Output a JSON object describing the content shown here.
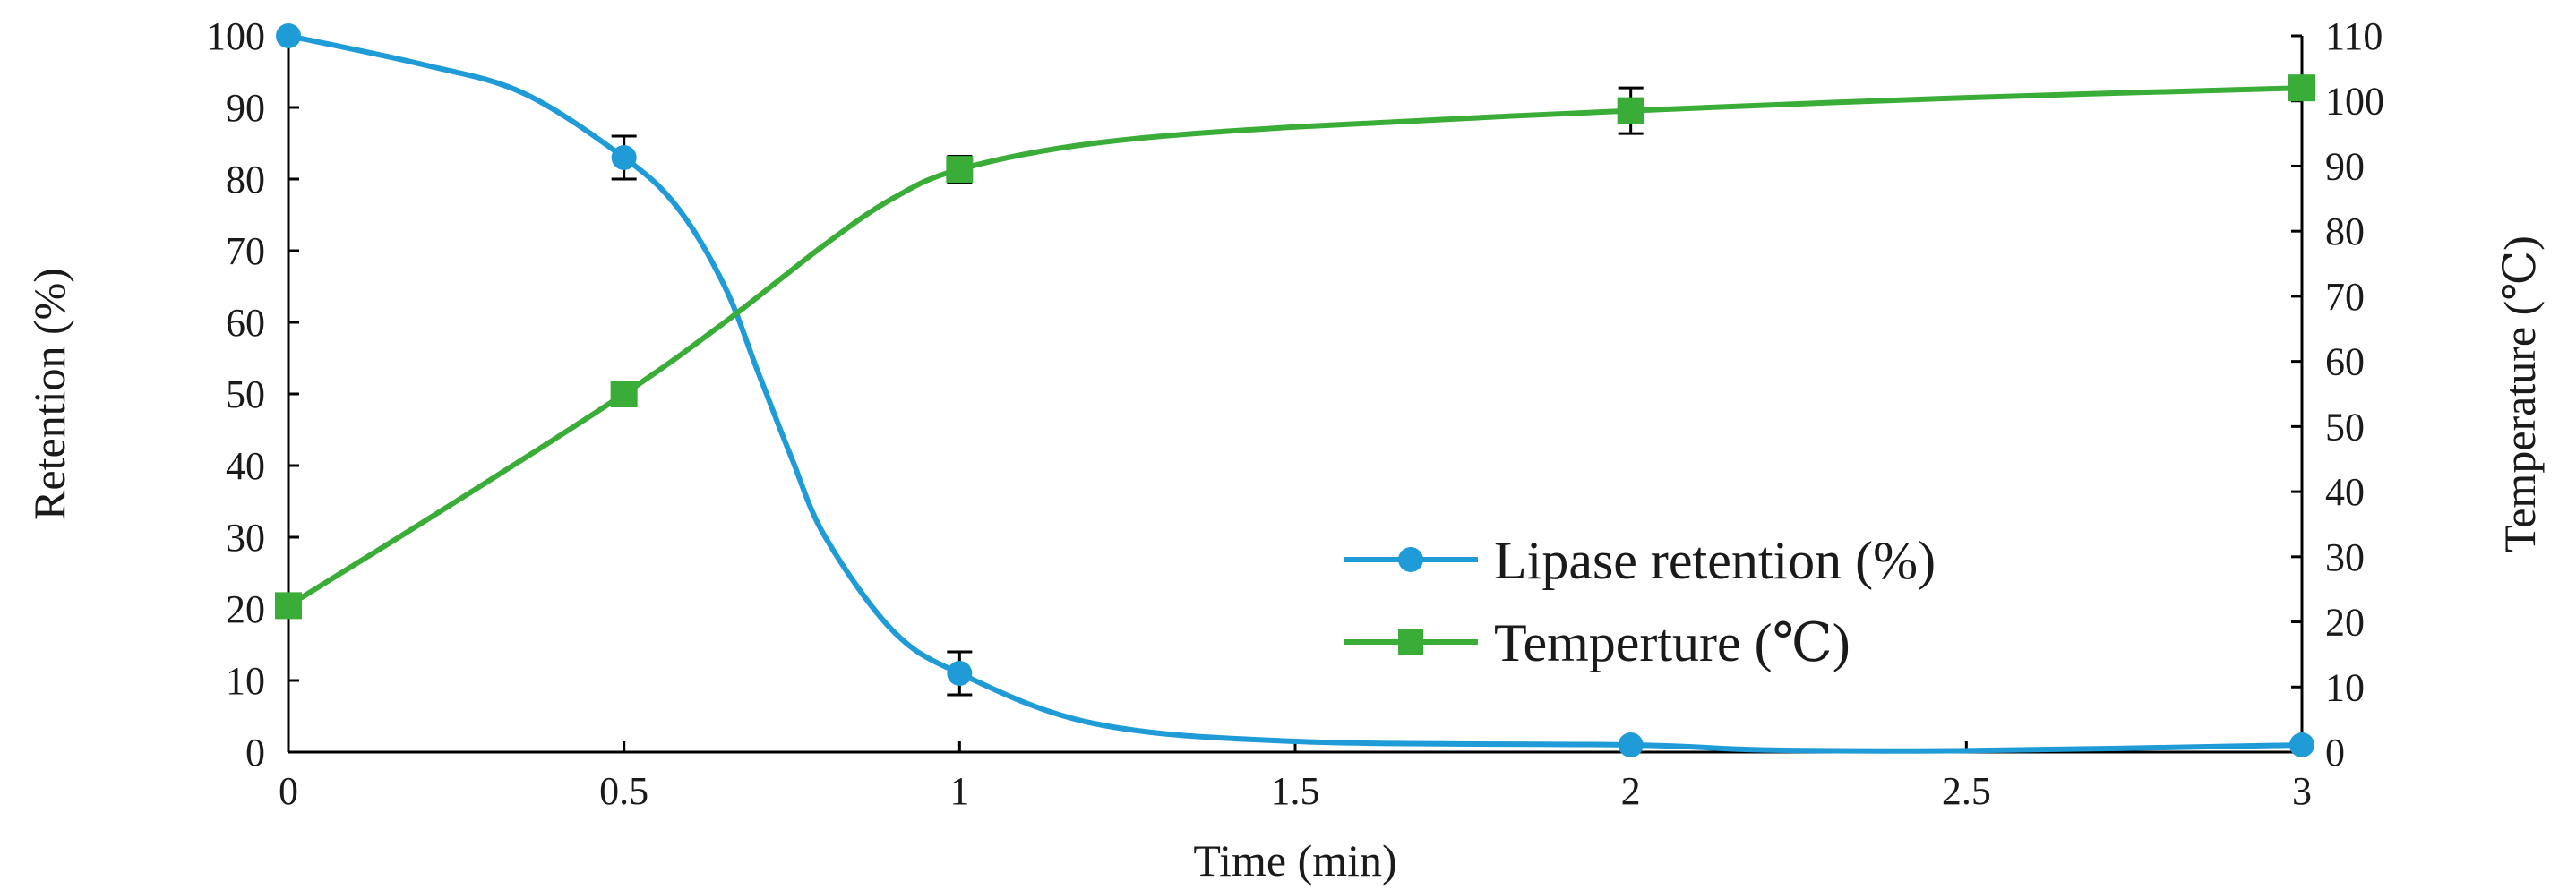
{
  "chart_data": {
    "type": "line",
    "xlabel": "Time (min)",
    "ylabel_left": "Retention (%)",
    "ylabel_right": "Temperature (℃)",
    "xlim": [
      0,
      3
    ],
    "ylim_left": [
      0,
      100
    ],
    "ylim_right": [
      0,
      110
    ],
    "x_ticks": [
      "0",
      "0.5",
      "1",
      "1.5",
      "2",
      "2.5",
      "3"
    ],
    "y_left_ticks": [
      "0",
      "10",
      "20",
      "30",
      "40",
      "50",
      "60",
      "70",
      "80",
      "90",
      "100"
    ],
    "y_right_ticks": [
      "0",
      "10",
      "20",
      "30",
      "40",
      "50",
      "60",
      "70",
      "80",
      "90",
      "100",
      "110"
    ],
    "grid": false,
    "legend_position": "lower-right",
    "series": [
      {
        "name": "Lipase retention (%)",
        "axis": "left",
        "marker": "circle",
        "color": "#1f9bd7",
        "x": [
          0,
          0.5,
          1,
          2,
          3
        ],
        "y": [
          100,
          83,
          11,
          1,
          1
        ],
        "error": [
          0,
          3,
          3,
          0,
          0
        ],
        "smooth_curve": [
          [
            0,
            100
          ],
          [
            0.2,
            96
          ],
          [
            0.35,
            92
          ],
          [
            0.5,
            83
          ],
          [
            0.58,
            76
          ],
          [
            0.65,
            65
          ],
          [
            0.7,
            53
          ],
          [
            0.75,
            41
          ],
          [
            0.8,
            30
          ],
          [
            0.9,
            17
          ],
          [
            1,
            11
          ],
          [
            1.2,
            4
          ],
          [
            1.5,
            1.5
          ],
          [
            2,
            1
          ],
          [
            2.2,
            0.3
          ],
          [
            2.5,
            0.2
          ],
          [
            3,
            1
          ]
        ]
      },
      {
        "name": "Temperture (℃)",
        "axis": "right",
        "marker": "square",
        "color": "#3aac38",
        "x": [
          0,
          0.5,
          1,
          2,
          3
        ],
        "y": [
          22.5,
          55,
          89.5,
          98.5,
          102
        ],
        "error": [
          0,
          0,
          2,
          3.5,
          0
        ],
        "smooth_curve": [
          [
            0,
            22.5
          ],
          [
            0.25,
            38.5
          ],
          [
            0.5,
            55
          ],
          [
            0.65,
            66
          ],
          [
            0.8,
            78
          ],
          [
            0.9,
            85
          ],
          [
            1,
            89.5
          ],
          [
            1.2,
            93.5
          ],
          [
            1.5,
            96
          ],
          [
            2,
            98.5
          ],
          [
            2.5,
            100.5
          ],
          [
            3,
            102
          ]
        ]
      }
    ]
  }
}
